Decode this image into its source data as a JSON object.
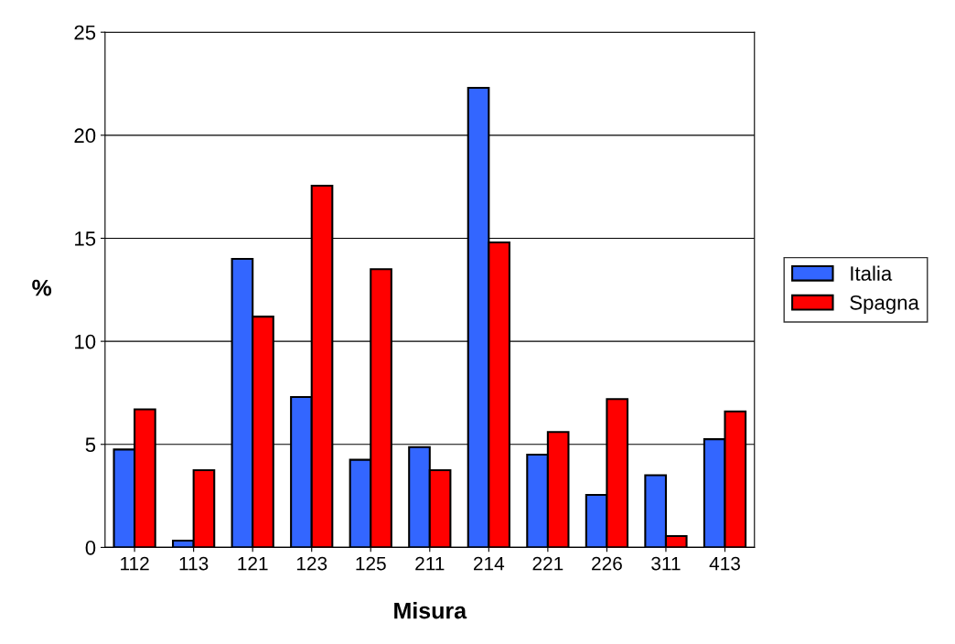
{
  "chart_data": {
    "type": "bar",
    "xlabel": "Misura",
    "ylabel": "%",
    "categories": [
      "112",
      "113",
      "121",
      "123",
      "125",
      "211",
      "214",
      "221",
      "226",
      "311",
      "413"
    ],
    "series": [
      {
        "name": "Italia",
        "color": "#3366ff",
        "values": [
          4.75,
          0.33,
          14.0,
          7.3,
          4.25,
          4.87,
          22.3,
          4.5,
          2.55,
          3.5,
          5.25
        ]
      },
      {
        "name": "Spagna",
        "color": "#ff0000",
        "values": [
          6.7,
          3.75,
          11.2,
          17.55,
          13.5,
          3.75,
          14.8,
          5.6,
          7.2,
          0.55,
          6.6
        ]
      }
    ],
    "ylim": [
      0,
      25
    ],
    "yticks": [
      0,
      5,
      10,
      15,
      20,
      25
    ],
    "grid": "y",
    "legend": "right"
  }
}
